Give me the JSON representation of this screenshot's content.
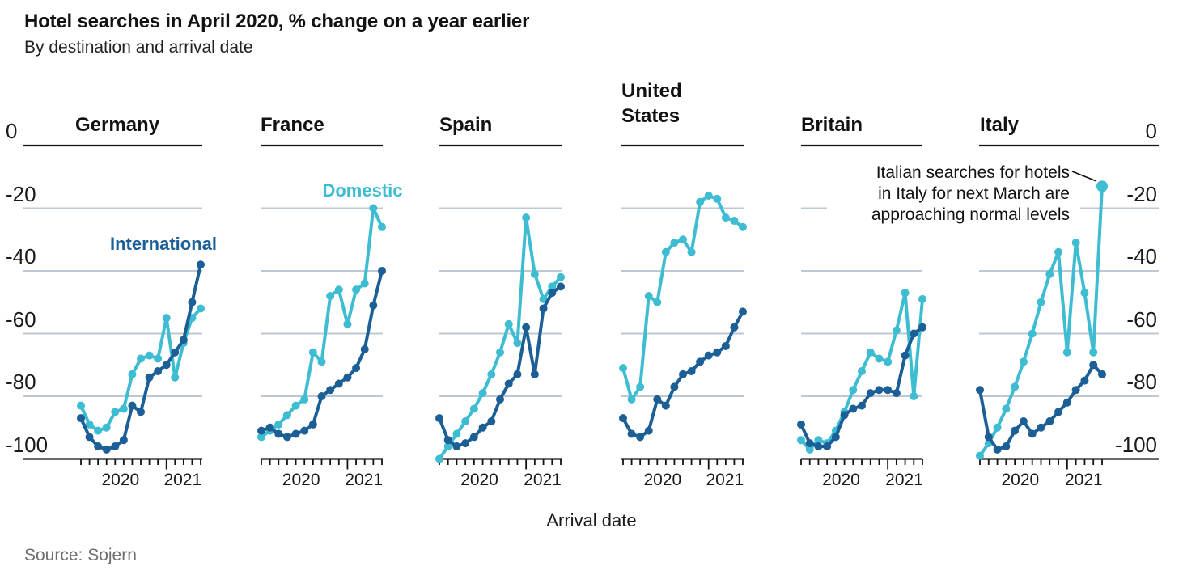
{
  "header": {
    "title": "Hotel searches in April 2020, % change on a year earlier",
    "subtitle": "By destination and arrival date"
  },
  "footer": {
    "source": "Source: Sojern"
  },
  "chart_data": {
    "type": "line",
    "title": "Hotel searches in April 2020, % change on a year earlier",
    "subtitle": "By destination and arrival date",
    "xlabel": "Arrival date",
    "ylim": [
      -100,
      0
    ],
    "ytick_labels": [
      "0",
      "-20",
      "-40",
      "-60",
      "-80",
      "-100"
    ],
    "x_year_labels": [
      "2020",
      "2021"
    ],
    "grid": true,
    "legend": [
      {
        "name": "Domestic",
        "color": "#3EBCD2"
      },
      {
        "name": "International",
        "color": "#1B5F96"
      }
    ],
    "colors": {
      "domestic": "#3EBCD2",
      "international": "#1B5F96",
      "gridline": "#BCC9D4",
      "axis": "#121212"
    },
    "annotation": {
      "lines": [
        "Italian searches for hotels",
        "in Italy for next March are",
        "approaching normal levels"
      ],
      "target_panel": "Italy",
      "target_value": -13
    },
    "panels": [
      {
        "name": "Germany",
        "series": {
          "Domestic": [
            -83,
            -89,
            -91,
            -90,
            -85,
            -84,
            -73,
            -68,
            -67,
            -68,
            -55,
            -74,
            -63,
            -55,
            -52
          ],
          "International": [
            -87,
            -93,
            -96,
            -97,
            -96,
            -94,
            -83,
            -85,
            -74,
            -72,
            -70,
            -66,
            -62,
            -50,
            -38
          ]
        }
      },
      {
        "name": "France",
        "series": {
          "Domestic": [
            -93,
            -91,
            -89,
            -86,
            -83,
            -81,
            -66,
            -69,
            -48,
            -46,
            -57,
            -46,
            -44,
            -20,
            -26
          ],
          "International": [
            -91,
            -90,
            -92,
            -93,
            -92,
            -91,
            -89,
            -80,
            -78,
            -76,
            -74,
            -71,
            -65,
            -51,
            -40
          ]
        }
      },
      {
        "name": "Spain",
        "series": {
          "Domestic": [
            -100,
            -96,
            -92,
            -88,
            -84,
            -79,
            -73,
            -66,
            -57,
            -63,
            -23,
            -41,
            -49,
            -45,
            -42
          ],
          "International": [
            -87,
            -94,
            -96,
            -95,
            -93,
            -90,
            -88,
            -81,
            -76,
            -73,
            -58,
            -73,
            -52,
            -47,
            -45
          ]
        }
      },
      {
        "name": "United States",
        "series": {
          "Domestic": [
            -71,
            -81,
            -77,
            -48,
            -50,
            -34,
            -31,
            -30,
            -34,
            -18,
            -16,
            -17,
            -23,
            -24,
            -26
          ],
          "International": [
            -87,
            -92,
            -93,
            -91,
            -81,
            -83,
            -77,
            -73,
            -72,
            -69,
            -67,
            -66,
            -64,
            -58,
            -53
          ]
        }
      },
      {
        "name": "Britain",
        "series": {
          "Domestic": [
            -94,
            -97,
            -94,
            -95,
            -91,
            -85,
            -78,
            -72,
            -66,
            -68,
            -69,
            -59,
            -47,
            -80,
            -49
          ],
          "International": [
            -89,
            -95,
            -96,
            -96,
            -93,
            -86,
            -84,
            -83,
            -79,
            -78,
            -78,
            -79,
            -67,
            -60,
            -58
          ]
        }
      },
      {
        "name": "Italy",
        "series": {
          "Domestic": [
            -99,
            -95,
            -90,
            -84,
            -77,
            -69,
            -60,
            -50,
            -41,
            -34,
            -66,
            -31,
            -47,
            -66,
            -13
          ],
          "International": [
            -78,
            -93,
            -97,
            -96,
            -91,
            -88,
            -92,
            -90,
            -88,
            -85,
            -82,
            -78,
            -75,
            -70,
            -73
          ]
        }
      }
    ]
  }
}
